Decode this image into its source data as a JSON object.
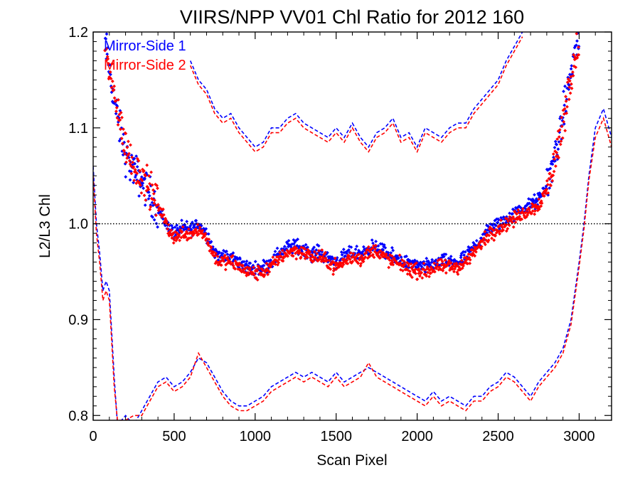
{
  "chart_data": {
    "type": "scatter",
    "title": "VIIRS/NPP VV01 Chl Ratio for 2012 160",
    "xlabel": "Scan Pixel",
    "ylabel": "L2/L3 Chl",
    "xlim": [
      0,
      3200
    ],
    "ylim": [
      0.795,
      1.2
    ],
    "x_ticks": [
      0,
      500,
      1000,
      1500,
      2000,
      2500,
      3000
    ],
    "y_ticks": [
      0.8,
      0.9,
      1.0,
      1.1,
      1.2
    ],
    "x_tick_labels": [
      "0",
      "500",
      "1000",
      "1500",
      "2000",
      "2500",
      "3000"
    ],
    "y_tick_labels": [
      "0.8",
      "0.9",
      "1.0",
      "1.1",
      "1.2"
    ],
    "reference_line": {
      "y": 1.0,
      "style": "dotted",
      "color": "#000000"
    },
    "legend": {
      "placement": "top-left"
    },
    "series": [
      {
        "name": "Mirror-Side 1",
        "color": "#0000ff",
        "mean": {
          "x": [
            70,
            100,
            150,
            200,
            250,
            300,
            350,
            400,
            450,
            500,
            550,
            600,
            650,
            700,
            750,
            800,
            850,
            900,
            950,
            1000,
            1050,
            1100,
            1150,
            1200,
            1250,
            1300,
            1350,
            1400,
            1450,
            1500,
            1550,
            1600,
            1650,
            1700,
            1750,
            1800,
            1850,
            1900,
            1950,
            2000,
            2050,
            2100,
            2150,
            2200,
            2250,
            2300,
            2350,
            2400,
            2450,
            2500,
            2550,
            2600,
            2650,
            2700,
            2750,
            2800,
            2850,
            2900,
            2950,
            3000
          ],
          "y": [
            1.195,
            1.16,
            1.11,
            1.07,
            1.055,
            1.045,
            1.03,
            1.015,
            1.0,
            0.99,
            0.995,
            0.995,
            1.0,
            0.99,
            0.97,
            0.965,
            0.965,
            0.96,
            0.955,
            0.952,
            0.955,
            0.96,
            0.97,
            0.975,
            0.977,
            0.975,
            0.968,
            0.97,
            0.965,
            0.96,
            0.965,
            0.97,
            0.968,
            0.975,
            0.975,
            0.97,
            0.965,
            0.962,
            0.958,
            0.955,
            0.955,
            0.958,
            0.96,
            0.96,
            0.96,
            0.965,
            0.975,
            0.985,
            0.995,
            1.0,
            1.005,
            1.01,
            1.015,
            1.02,
            1.025,
            1.04,
            1.07,
            1.11,
            1.16,
            1.195
          ]
        },
        "upper": {
          "x": [
            600,
            650,
            700,
            750,
            800,
            850,
            900,
            950,
            1000,
            1050,
            1100,
            1150,
            1200,
            1250,
            1300,
            1350,
            1400,
            1450,
            1500,
            1550,
            1600,
            1650,
            1700,
            1750,
            1800,
            1850,
            1900,
            1950,
            2000,
            2050,
            2100,
            2150,
            2200,
            2250,
            2300,
            2350,
            2400,
            2450,
            2500,
            2550,
            2600,
            2650
          ],
          "y": [
            1.17,
            1.15,
            1.14,
            1.12,
            1.11,
            1.115,
            1.1,
            1.09,
            1.08,
            1.085,
            1.1,
            1.1,
            1.11,
            1.115,
            1.105,
            1.1,
            1.095,
            1.09,
            1.1,
            1.09,
            1.105,
            1.09,
            1.08,
            1.095,
            1.1,
            1.11,
            1.09,
            1.095,
            1.08,
            1.1,
            1.095,
            1.09,
            1.1,
            1.105,
            1.105,
            1.12,
            1.13,
            1.14,
            1.15,
            1.17,
            1.185,
            1.2
          ]
        },
        "lower": {
          "x": [
            0,
            20,
            40,
            60,
            80,
            100,
            110,
            130,
            150,
            200,
            250,
            300,
            350,
            400,
            450,
            500,
            550,
            600,
            650,
            700,
            750,
            800,
            850,
            900,
            950,
            1000,
            1050,
            1100,
            1150,
            1200,
            1250,
            1300,
            1350,
            1400,
            1450,
            1500,
            1550,
            1600,
            1650,
            1700,
            1750,
            1800,
            1850,
            1900,
            1950,
            2000,
            2050,
            2100,
            2150,
            2200,
            2250,
            2300,
            2350,
            2400,
            2450,
            2500,
            2550,
            2600,
            2650,
            2700,
            2750,
            2800,
            2850,
            2900,
            2950,
            3000,
            3030,
            3060,
            3100,
            3150,
            3200
          ],
          "y": [
            1.06,
            1.0,
            0.97,
            0.93,
            0.94,
            0.93,
            0.9,
            0.84,
            0.79,
            0.8,
            0.79,
            0.805,
            0.82,
            0.835,
            0.84,
            0.83,
            0.835,
            0.845,
            0.86,
            0.855,
            0.84,
            0.825,
            0.815,
            0.81,
            0.81,
            0.815,
            0.82,
            0.83,
            0.835,
            0.84,
            0.845,
            0.84,
            0.845,
            0.84,
            0.835,
            0.845,
            0.835,
            0.84,
            0.845,
            0.85,
            0.845,
            0.84,
            0.835,
            0.83,
            0.825,
            0.82,
            0.815,
            0.825,
            0.815,
            0.82,
            0.815,
            0.81,
            0.82,
            0.82,
            0.83,
            0.835,
            0.845,
            0.84,
            0.83,
            0.82,
            0.835,
            0.845,
            0.855,
            0.87,
            0.9,
            0.96,
            1.0,
            1.05,
            1.1,
            1.12,
            1.09
          ]
        }
      },
      {
        "name": "Mirror-Side 2",
        "color": "#ff0000",
        "mean": {
          "x": [
            70,
            100,
            150,
            200,
            250,
            300,
            350,
            400,
            450,
            500,
            550,
            600,
            650,
            700,
            750,
            800,
            850,
            900,
            950,
            1000,
            1050,
            1100,
            1150,
            1200,
            1250,
            1300,
            1350,
            1400,
            1450,
            1500,
            1550,
            1600,
            1650,
            1700,
            1750,
            1800,
            1850,
            1900,
            1950,
            2000,
            2050,
            2100,
            2150,
            2200,
            2250,
            2300,
            2350,
            2400,
            2450,
            2500,
            2550,
            2600,
            2650,
            2700,
            2750,
            2800,
            2850,
            2900,
            2950,
            3000
          ],
          "y": [
            1.19,
            1.155,
            1.12,
            1.08,
            1.06,
            1.05,
            1.035,
            1.02,
            1.0,
            0.985,
            0.99,
            0.99,
            0.995,
            0.985,
            0.965,
            0.96,
            0.96,
            0.955,
            0.95,
            0.948,
            0.95,
            0.955,
            0.965,
            0.97,
            0.972,
            0.97,
            0.965,
            0.965,
            0.96,
            0.955,
            0.96,
            0.965,
            0.963,
            0.97,
            0.972,
            0.965,
            0.96,
            0.958,
            0.953,
            0.95,
            0.95,
            0.953,
            0.955,
            0.955,
            0.955,
            0.96,
            0.97,
            0.98,
            0.99,
            0.995,
            1.0,
            1.005,
            1.01,
            1.015,
            1.02,
            1.035,
            1.065,
            1.105,
            1.155,
            1.19
          ]
        },
        "upper": {
          "x": [
            600,
            650,
            700,
            750,
            800,
            850,
            900,
            950,
            1000,
            1050,
            1100,
            1150,
            1200,
            1250,
            1300,
            1350,
            1400,
            1450,
            1500,
            1550,
            1600,
            1650,
            1700,
            1750,
            1800,
            1850,
            1900,
            1950,
            2000,
            2050,
            2100,
            2150,
            2200,
            2250,
            2300,
            2350,
            2400,
            2450,
            2500,
            2550,
            2600,
            2650
          ],
          "y": [
            1.165,
            1.145,
            1.135,
            1.115,
            1.105,
            1.11,
            1.095,
            1.085,
            1.075,
            1.08,
            1.095,
            1.095,
            1.105,
            1.11,
            1.1,
            1.095,
            1.09,
            1.085,
            1.095,
            1.085,
            1.1,
            1.085,
            1.075,
            1.09,
            1.095,
            1.105,
            1.085,
            1.09,
            1.075,
            1.095,
            1.09,
            1.085,
            1.095,
            1.1,
            1.1,
            1.115,
            1.125,
            1.135,
            1.145,
            1.165,
            1.18,
            1.195
          ]
        },
        "lower": {
          "x": [
            0,
            20,
            40,
            60,
            80,
            100,
            110,
            130,
            150,
            200,
            250,
            300,
            350,
            400,
            450,
            500,
            550,
            600,
            650,
            700,
            750,
            800,
            850,
            900,
            950,
            1000,
            1050,
            1100,
            1150,
            1200,
            1250,
            1300,
            1350,
            1400,
            1450,
            1500,
            1550,
            1600,
            1650,
            1700,
            1750,
            1800,
            1850,
            1900,
            1950,
            2000,
            2050,
            2100,
            2150,
            2200,
            2250,
            2300,
            2350,
            2400,
            2450,
            2500,
            2550,
            2600,
            2650,
            2700,
            2750,
            2800,
            2850,
            2900,
            2950,
            3000,
            3030,
            3060,
            3100,
            3150,
            3200
          ],
          "y": [
            1.05,
            0.99,
            0.96,
            0.92,
            0.93,
            0.92,
            0.89,
            0.83,
            0.795,
            0.795,
            0.8,
            0.8,
            0.815,
            0.83,
            0.835,
            0.825,
            0.83,
            0.84,
            0.865,
            0.85,
            0.835,
            0.82,
            0.81,
            0.805,
            0.805,
            0.81,
            0.815,
            0.825,
            0.83,
            0.835,
            0.84,
            0.835,
            0.84,
            0.835,
            0.83,
            0.84,
            0.83,
            0.835,
            0.84,
            0.855,
            0.84,
            0.835,
            0.83,
            0.825,
            0.82,
            0.815,
            0.81,
            0.82,
            0.81,
            0.815,
            0.81,
            0.805,
            0.815,
            0.815,
            0.825,
            0.83,
            0.84,
            0.835,
            0.825,
            0.815,
            0.83,
            0.84,
            0.85,
            0.865,
            0.895,
            0.955,
            0.995,
            1.045,
            1.09,
            1.11,
            1.08
          ]
        }
      }
    ]
  }
}
